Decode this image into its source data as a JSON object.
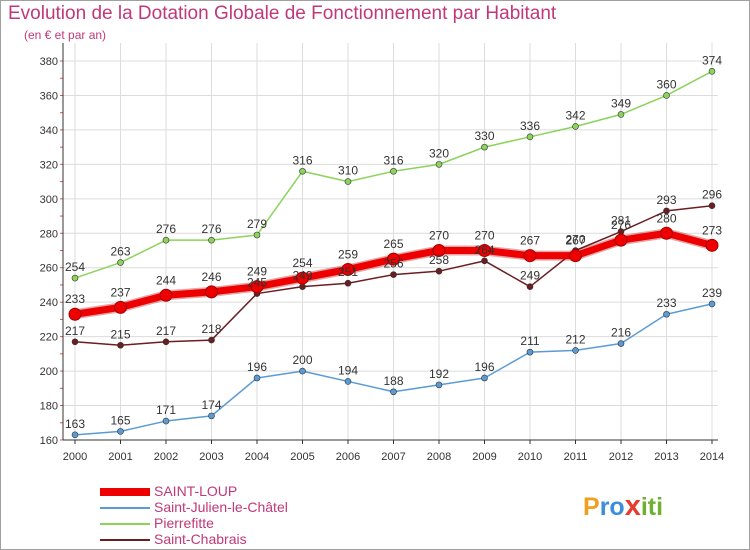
{
  "chart_data": {
    "type": "line",
    "title": "Evolution de la Dotation Globale de Fonctionnement par Habitant",
    "subtitle": "(en € et par an)",
    "xlabel": "",
    "ylabel": "",
    "ylim": [
      160,
      380
    ],
    "yticks": [
      160,
      180,
      200,
      220,
      240,
      260,
      280,
      300,
      320,
      340,
      360,
      380
    ],
    "categories": [
      "2000",
      "2001",
      "2002",
      "2003",
      "2004",
      "2005",
      "2006",
      "2007",
      "2008",
      "2009",
      "2010",
      "2011",
      "2012",
      "2013",
      "2014"
    ],
    "series": [
      {
        "name": "SAINT-LOUP",
        "color": "#ee0000",
        "values": [
          233,
          237,
          244,
          246,
          249,
          254,
          259,
          265,
          270,
          270,
          267,
          267,
          276,
          280,
          273
        ]
      },
      {
        "name": "Saint-Julien-le-Châtel",
        "color": "#5b9bd5",
        "values": [
          163,
          165,
          171,
          174,
          196,
          200,
          194,
          188,
          192,
          196,
          211,
          212,
          216,
          233,
          239
        ]
      },
      {
        "name": "Pierrefitte",
        "color": "#8bd35b",
        "values": [
          254,
          263,
          276,
          276,
          279,
          316,
          310,
          316,
          320,
          330,
          336,
          342,
          349,
          360,
          374
        ]
      },
      {
        "name": "Saint-Chabrais",
        "color": "#6b1e22",
        "values": [
          217,
          215,
          217,
          218,
          245,
          249,
          251,
          256,
          258,
          264,
          249,
          270,
          281,
          293,
          296
        ]
      }
    ],
    "grid": true,
    "legend": "bottom-left"
  },
  "logo": {
    "text": "Proxiti",
    "letters": [
      "P",
      "r",
      "o",
      "x",
      "i",
      "t",
      "i"
    ],
    "colors": [
      "#f0a020",
      "#3a8fd8",
      "#3a8fd8",
      "#e63b2e",
      "#70b030",
      "#70b030",
      "#70b030"
    ]
  }
}
